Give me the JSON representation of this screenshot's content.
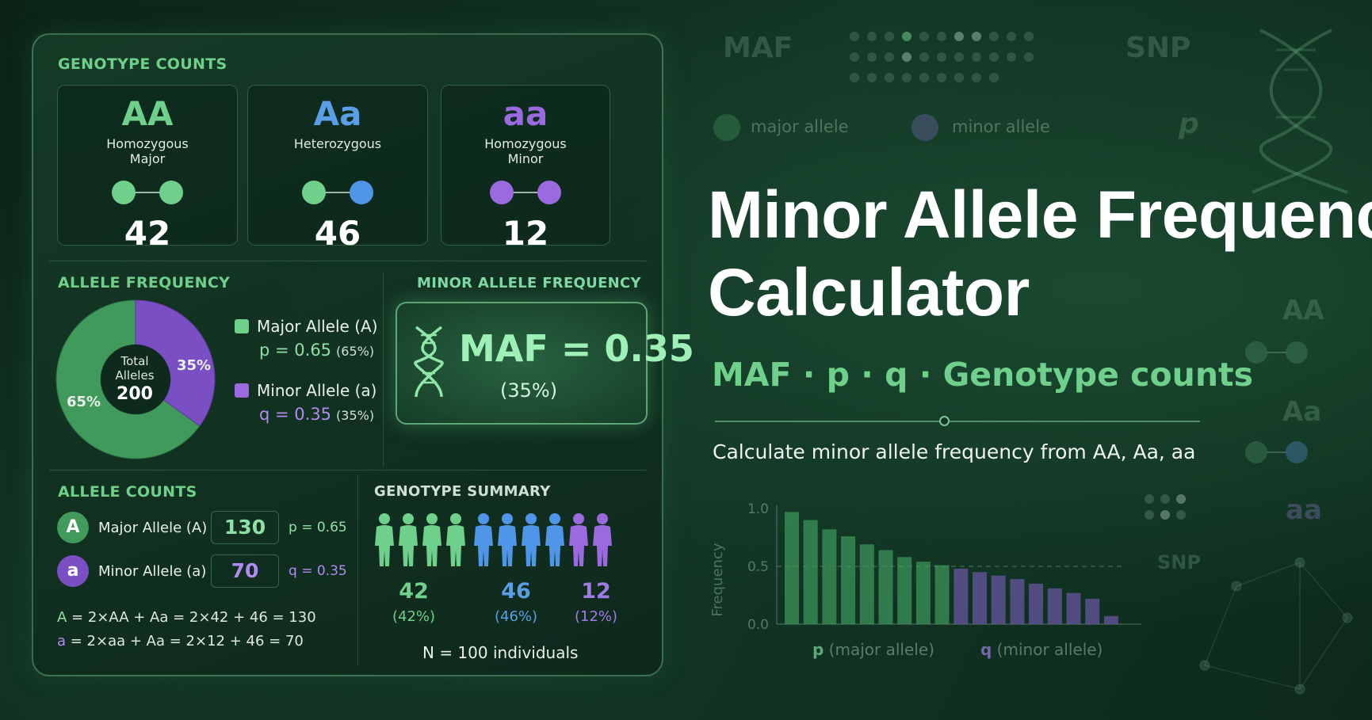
{
  "genotype_counts": {
    "label": "GENOTYPE COUNTS",
    "cards": [
      {
        "symbol": "AA",
        "description": "Homozygous\nMajor",
        "count": "42",
        "color": "#6fd08b",
        "left_dot": "#6fd08b",
        "right_dot": "#6fd08b"
      },
      {
        "symbol": "Aa",
        "description": "Heterozygous",
        "count": "46",
        "color": "#5a9fe6",
        "left_dot": "#6fd08b",
        "right_dot": "#4f95e8"
      },
      {
        "symbol": "aa",
        "description": "Homozygous\nMinor",
        "count": "12",
        "color": "#9b6ae0",
        "left_dot": "#9b6ae0",
        "right_dot": "#9b6ae0"
      }
    ]
  },
  "allele_frequency": {
    "label": "ALLELE FREQUENCY",
    "donut": {
      "center_label": "Total\nAlleles",
      "center_value": "200",
      "major_pct_label": "65%",
      "minor_pct_label": "35%",
      "major_fraction": 0.65,
      "minor_fraction": 0.35
    },
    "legend": {
      "major_label": "Major Allele (A)",
      "major_value": "p = 0.65",
      "major_pct": "(65%)",
      "minor_label": "Minor Allele (a)",
      "minor_value": "q = 0.35",
      "minor_pct": "(35%)"
    }
  },
  "minor_allele_frequency": {
    "label": "MINOR ALLELE FREQUENCY",
    "value": "MAF = 0.35",
    "pct": "(35%)"
  },
  "allele_counts": {
    "label": "ALLELE COUNTS",
    "rows": [
      {
        "badge": "A",
        "label": "Major Allele (A)",
        "count": "130",
        "freq": "p = 0.65"
      },
      {
        "badge": "a",
        "label": "Minor Allele (a)",
        "count": "70",
        "freq": "q = 0.35"
      }
    ],
    "formula_a": {
      "lhs": "A",
      "rest": " = 2×AA + Aa  = 2×42 + 46 = 130"
    },
    "formula_b": {
      "lhs": "a",
      "rest": " = 2×aa + Aa  = 2×12 + 46 = 70"
    }
  },
  "genotype_summary": {
    "label": "GENOTYPE SUMMARY",
    "groups": [
      {
        "count": "42",
        "pct": "(42%)",
        "color": "#6fd08b",
        "icons": 4
      },
      {
        "count": "46",
        "pct": "(46%)",
        "color": "#4f95e8",
        "icons": 4
      },
      {
        "count": "12",
        "pct": "(12%)",
        "color": "#9b6ae0",
        "icons": 2
      }
    ],
    "total": "N = 100 individuals"
  },
  "hero": {
    "title_line1": "Minor Allele Frequency",
    "title_line2": "Calculator",
    "subtitle": "MAF · p · q · Genotype counts",
    "caption": "Calculate minor allele frequency from AA, Aa, aa"
  },
  "background": {
    "maf": "MAF",
    "snp": "SNP",
    "snp2": "SNP",
    "p": "p",
    "AA": "AA",
    "Aa": "Aa",
    "aa": "aa",
    "major_allele": "major allele",
    "minor_allele": "minor allele"
  },
  "chart_data": {
    "type": "bar",
    "ylabel": "Frequency",
    "ylim": [
      0,
      1.0
    ],
    "yticks": [
      "1.0",
      "0.5",
      "0.0"
    ],
    "reference_line": 0.5,
    "values": [
      0.97,
      0.9,
      0.82,
      0.76,
      0.69,
      0.64,
      0.58,
      0.54,
      0.51,
      0.48,
      0.45,
      0.42,
      0.39,
      0.35,
      0.31,
      0.27,
      0.22,
      0.07
    ],
    "major_count": 9,
    "major_color": "#3f9a5c",
    "minor_color": "#6d58a8",
    "xlabels": [
      {
        "symbol": "p",
        "text": " (major allele)"
      },
      {
        "symbol": "q",
        "text": "  (minor allele)"
      }
    ]
  }
}
